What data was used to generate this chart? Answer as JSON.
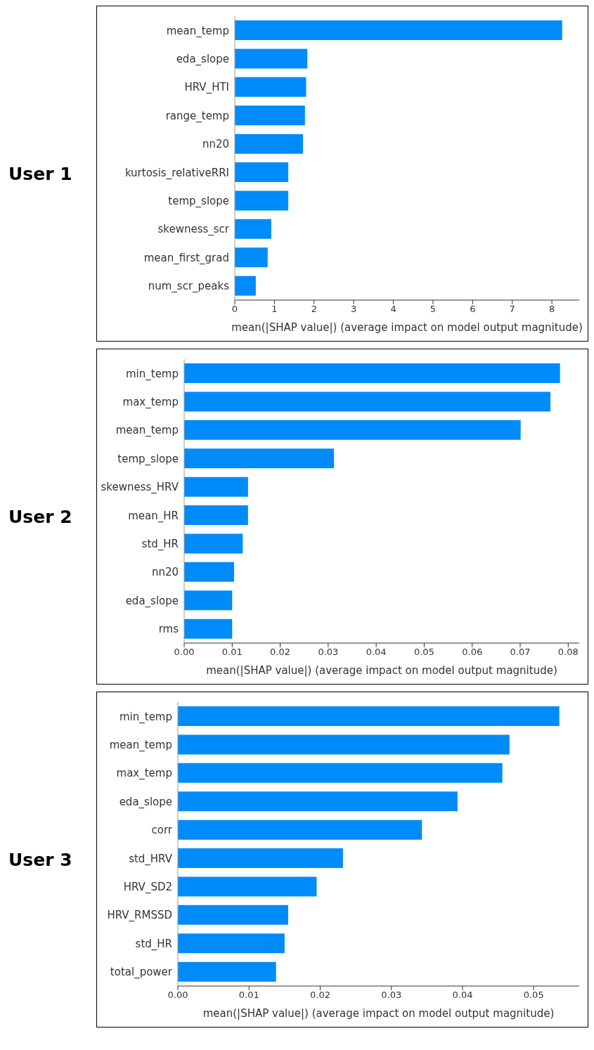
{
  "chart_data": [
    {
      "type": "bar",
      "orientation": "horizontal",
      "title": "User 1",
      "xlabel": "mean(|SHAP value|) (average impact on model output magnitude)",
      "color": "#008bfb",
      "categories": [
        "mean_temp",
        "eda_slope",
        "HRV_HTI",
        "range_temp",
        "nn20",
        "kurtosis_relativeRRI",
        "temp_slope",
        "skewness_scr",
        "mean_first_grad",
        "num_scr_peaks"
      ],
      "values": [
        8.26,
        1.83,
        1.8,
        1.77,
        1.72,
        1.35,
        1.35,
        0.92,
        0.83,
        0.53
      ],
      "xlim": [
        0,
        8.69
      ],
      "xticks": [
        0,
        1,
        2,
        3,
        4,
        5,
        6,
        7,
        8
      ],
      "grid": false,
      "legend": false
    },
    {
      "type": "bar",
      "orientation": "horizontal",
      "title": "User 2",
      "xlabel": "mean(|SHAP value|) (average impact on model output magnitude)",
      "color": "#008bfb",
      "categories": [
        "min_temp",
        "max_temp",
        "mean_temp",
        "temp_slope",
        "skewness_HRV",
        "mean_HR",
        "std_HR",
        "nn20",
        "eda_slope",
        "rms"
      ],
      "values": [
        0.0783,
        0.0763,
        0.0701,
        0.0312,
        0.0133,
        0.0133,
        0.0122,
        0.0104,
        0.01,
        0.01
      ],
      "xlim": [
        0,
        0.0823
      ],
      "xticks": [
        {
          "value": 0,
          "label": "0.00"
        },
        {
          "value": 0.01,
          "label": "0.01"
        },
        {
          "value": 0.02,
          "label": "0.02"
        },
        {
          "value": 0.03,
          "label": "0.03"
        },
        {
          "value": 0.04,
          "label": "0.04"
        },
        {
          "value": 0.05,
          "label": "0.05"
        },
        {
          "value": 0.06,
          "label": "0.06"
        },
        {
          "value": 0.07,
          "label": "0.07"
        },
        {
          "value": 0.08,
          "label": "0.08"
        }
      ],
      "grid": false,
      "legend": false
    },
    {
      "type": "bar",
      "orientation": "horizontal",
      "title": "User 3",
      "xlabel": "mean(|SHAP value|) (average impact on model output magnitude)",
      "color": "#008bfb",
      "categories": [
        "min_temp",
        "mean_temp",
        "max_temp",
        "eda_slope",
        "corr",
        "std_HRV",
        "HRV_SD2",
        "HRV_RMSSD",
        "std_HR",
        "total_power"
      ],
      "values": [
        0.0536,
        0.0466,
        0.0456,
        0.0393,
        0.0343,
        0.0232,
        0.0195,
        0.0155,
        0.015,
        0.0138
      ],
      "xlim": [
        0,
        0.0564
      ],
      "xticks": [
        {
          "value": 0,
          "label": "0.00"
        },
        {
          "value": 0.01,
          "label": "0.01"
        },
        {
          "value": 0.02,
          "label": "0.02"
        },
        {
          "value": 0.03,
          "label": "0.03"
        },
        {
          "value": 0.04,
          "label": "0.04"
        },
        {
          "value": 0.05,
          "label": "0.05"
        }
      ],
      "grid": false,
      "legend": false
    }
  ]
}
